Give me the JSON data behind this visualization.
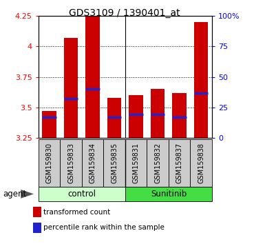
{
  "title": "GDS3109 / 1390401_at",
  "samples": [
    "GSM159830",
    "GSM159833",
    "GSM159834",
    "GSM159835",
    "GSM159831",
    "GSM159832",
    "GSM159837",
    "GSM159838"
  ],
  "groups": [
    "control",
    "control",
    "control",
    "control",
    "Sunitinib",
    "Sunitinib",
    "Sunitinib",
    "Sunitinib"
  ],
  "bar_tops": [
    3.47,
    4.07,
    4.25,
    3.58,
    3.6,
    3.65,
    3.62,
    4.2
  ],
  "bar_bottoms": [
    3.25,
    3.25,
    3.25,
    3.25,
    3.25,
    3.25,
    3.25,
    3.25
  ],
  "blue_markers": [
    3.42,
    3.57,
    3.65,
    3.42,
    3.44,
    3.44,
    3.42,
    3.62
  ],
  "ylim": [
    3.25,
    4.25
  ],
  "y2lim": [
    0,
    100
  ],
  "yticks": [
    3.25,
    3.5,
    3.75,
    4.0,
    4.25
  ],
  "ytick_labels": [
    "3.25",
    "3.5",
    "3.75",
    "4",
    "4.25"
  ],
  "y2ticks": [
    0,
    25,
    50,
    75,
    100
  ],
  "y2tick_labels": [
    "0",
    "25",
    "50",
    "75",
    "100%"
  ],
  "bar_color": "#cc0000",
  "blue_color": "#2222cc",
  "bar_width": 0.65,
  "control_color": "#ccffcc",
  "sunitinib_color": "#44dd44",
  "sample_bg_color": "#cccccc",
  "legend_tc": "transformed count",
  "legend_pr": "percentile rank within the sample",
  "plot_bg": "#ffffff"
}
